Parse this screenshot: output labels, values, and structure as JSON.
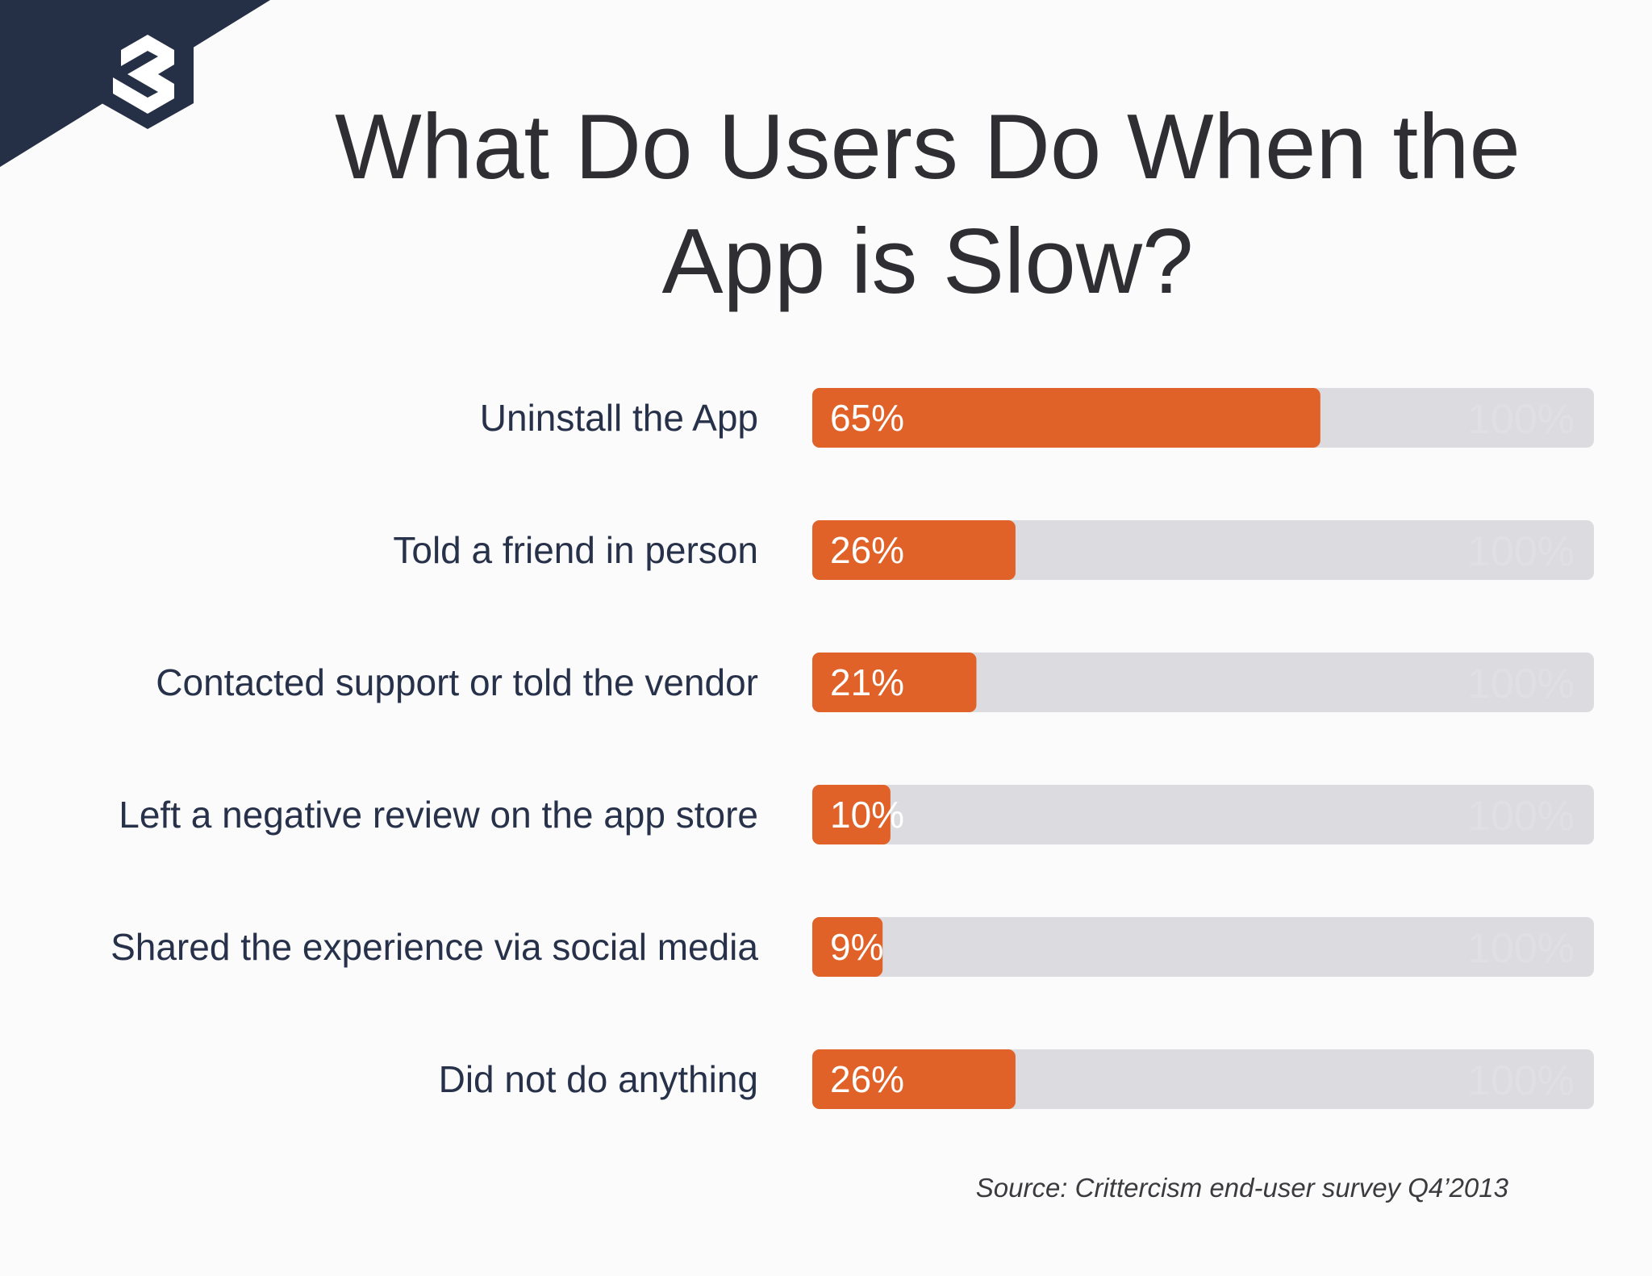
{
  "slide": {
    "title_line1": "What Do Users Do When the",
    "title_line2": "App is Slow?",
    "source": "Source: Crittercism end-user survey Q4’2013"
  },
  "colors": {
    "bar_fill": "#e06228",
    "bar_track": "#dcdbdf",
    "corner_band": "#252f45",
    "logo": "#252f45"
  },
  "chart_data": {
    "type": "bar",
    "orientation": "horizontal",
    "title": "What Do Users Do When the App is Slow?",
    "categories": [
      "Uninstall the App",
      "Told a friend in person",
      "Contacted support or told the vendor",
      "Left a negative review on the app store",
      "Shared the experience via social media",
      "Did not do anything"
    ],
    "values": [
      65,
      26,
      21,
      10,
      9,
      26
    ],
    "value_labels": [
      "65%",
      "26%",
      "21%",
      "10%",
      "9%",
      "26%"
    ],
    "max_label": "100%",
    "xlim": [
      0,
      100
    ],
    "grid": false
  }
}
